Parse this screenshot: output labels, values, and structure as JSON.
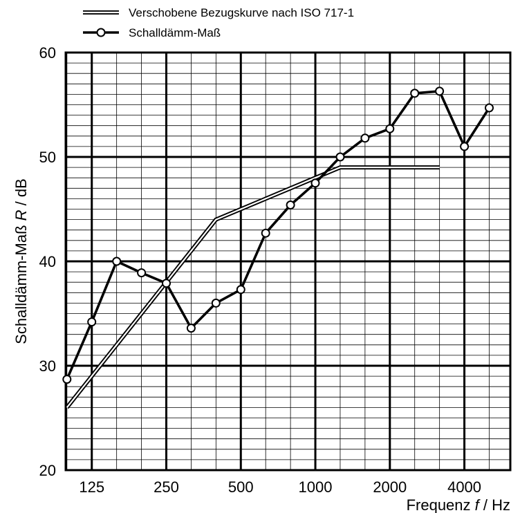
{
  "chart_data": {
    "type": "line",
    "title": "",
    "xlabel_prefix": "Frequenz ",
    "xlabel_var": "f",
    "xlabel_suffix": " / Hz",
    "ylabel_prefix": "Schalldämm-Maß ",
    "ylabel_var": "R",
    "ylabel_suffix": " / dB",
    "ylim": [
      20,
      60
    ],
    "y_ticks": [
      20,
      30,
      40,
      50,
      60
    ],
    "x_scale": "log (third-octave bands)",
    "x_tick_labels": [
      "125",
      "250",
      "500",
      "1000",
      "2000",
      "4000"
    ],
    "x_bands": [
      "100",
      "125",
      "160",
      "200",
      "250",
      "315",
      "400",
      "500",
      "630",
      "800",
      "1000",
      "1250",
      "1600",
      "2000",
      "2500",
      "3150",
      "4000",
      "5000"
    ],
    "grid": "major every 10 dB and every octave, minor every 1 dB and every third-octave",
    "legend_position": "top",
    "series": [
      {
        "name": "Verschobene Bezugskurve nach ISO 717-1",
        "style": "double-line",
        "x": [
          "100",
          "125",
          "160",
          "200",
          "250",
          "315",
          "400",
          "500",
          "630",
          "800",
          "1000",
          "1250",
          "1600",
          "2000",
          "2500",
          "3150"
        ],
        "values": [
          26,
          29,
          32,
          35,
          38,
          41,
          44,
          45,
          46,
          47,
          48,
          49,
          49,
          49,
          49,
          49
        ]
      },
      {
        "name": "Schalldämm-Maß",
        "style": "thick-line-with-open-circles",
        "x": [
          "100",
          "125",
          "160",
          "200",
          "250",
          "315",
          "400",
          "500",
          "630",
          "800",
          "1000",
          "1250",
          "1600",
          "2000",
          "2500",
          "3150",
          "4000",
          "5000"
        ],
        "values": [
          28.7,
          34.2,
          40.0,
          38.9,
          37.9,
          33.6,
          36.0,
          37.3,
          42.7,
          45.4,
          47.5,
          50.0,
          51.8,
          52.7,
          56.1,
          56.3,
          51.0,
          54.7
        ]
      }
    ]
  }
}
